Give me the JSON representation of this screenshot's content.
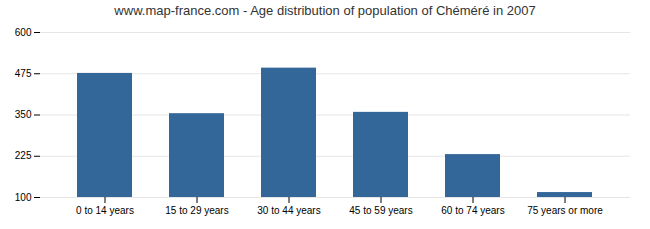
{
  "chart_data": {
    "type": "bar",
    "title": "www.map-france.com - Age distribution of population of Chéméré in 2007",
    "categories": [
      "0 to 14 years",
      "15 to 29 years",
      "30 to 44 years",
      "45 to 59 years",
      "60 to 74 years",
      "75 years or more"
    ],
    "values": [
      476,
      354,
      492,
      358,
      230,
      115
    ],
    "color": "#336699",
    "ylim": [
      100,
      600
    ],
    "yticks": [
      100,
      225,
      350,
      475,
      600
    ],
    "grid": true
  }
}
